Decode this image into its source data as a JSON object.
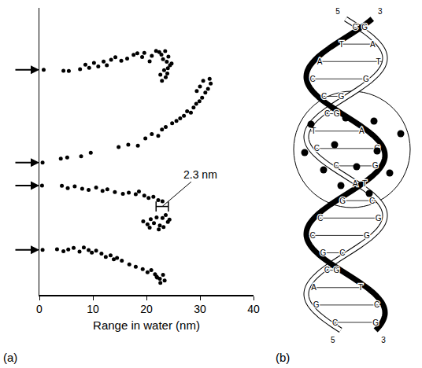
{
  "chart_data": {
    "type": "scatter",
    "panel_label": "(a)",
    "x_label": "Range in water (nm)",
    "xlim": [
      0,
      40
    ],
    "xticks": [
      0,
      10,
      20,
      30,
      40
    ],
    "ylim": [
      0,
      100
    ],
    "yticks": [],
    "tick_labels": "x",
    "grid": false,
    "marker": "circle",
    "series": [
      {
        "color": "#000000",
        "x": [
          0.8,
          4.5,
          5.5,
          7.6,
          8.6,
          9.3,
          10.2,
          11.0,
          12.0,
          12.6,
          13.4,
          14.2,
          15.3,
          16.4,
          17.6,
          18.3,
          19.2,
          19.6,
          20.6,
          21.0,
          21.8,
          22.4,
          22.8,
          23.1,
          23.5,
          23.8,
          24.1,
          24.4,
          24.0,
          23.3,
          22.6,
          23.9,
          24.7,
          22.9,
          23.6
        ],
        "y": [
          78.4,
          78.1,
          78.0,
          78.6,
          80.2,
          79.1,
          80.8,
          79.6,
          81.3,
          80.0,
          81.9,
          82.8,
          81.6,
          82.3,
          83.6,
          84.2,
          82.9,
          84.3,
          81.4,
          83.3,
          85.0,
          84.6,
          83.7,
          82.1,
          84.9,
          81.2,
          83.0,
          80.0,
          79.0,
          78.3,
          76.7,
          77.1,
          80.6,
          74.6,
          75.8
        ]
      },
      {
        "color": "#000000",
        "x": [
          0.6,
          4.0,
          5.2,
          7.8,
          9.6,
          14.8,
          16.6,
          18.4,
          19.8,
          21.0,
          22.2,
          22.9,
          23.6,
          24.8,
          25.6,
          26.3,
          27.0,
          27.6,
          28.3,
          28.8,
          29.3,
          29.9,
          30.4,
          31.0,
          31.5,
          32.0,
          30.6,
          29.4,
          31.8,
          30.0
        ],
        "y": [
          46.1,
          47.5,
          47.9,
          48.3,
          49.5,
          51.5,
          52.3,
          52.0,
          54.5,
          56.0,
          55.4,
          57.6,
          58.5,
          59.8,
          60.6,
          61.5,
          62.4,
          64.0,
          63.5,
          65.3,
          66.6,
          67.5,
          68.7,
          70.5,
          71.8,
          73.6,
          74.6,
          71.0,
          75.3,
          72.6
        ]
      },
      {
        "color": "#000000",
        "x": [
          0.5,
          4.2,
          5.3,
          6.6,
          8.0,
          9.2,
          10.6,
          11.8,
          12.7,
          14.1,
          15.6,
          16.7,
          18.0,
          18.6,
          19.6,
          20.4,
          21.3,
          22.2,
          23.0,
          19.4,
          20.2,
          20.8,
          21.4,
          21.9,
          22.5,
          23.0,
          23.6,
          24.0,
          23.2,
          22.3,
          20.6,
          24.3
        ],
        "y": [
          38.1,
          38.0,
          37.2,
          37.8,
          37.0,
          36.6,
          37.4,
          36.2,
          36.8,
          35.8,
          35.2,
          35.6,
          35.1,
          36.0,
          34.6,
          33.8,
          34.2,
          33.0,
          32.6,
          25.6,
          24.6,
          26.4,
          25.0,
          27.0,
          24.2,
          26.8,
          27.8,
          25.4,
          23.6,
          22.8,
          23.4,
          26.2
        ]
      },
      {
        "color": "#000000",
        "x": [
          0.6,
          3.3,
          4.5,
          5.4,
          6.4,
          7.5,
          8.3,
          9.2,
          9.8,
          10.6,
          11.6,
          12.4,
          13.3,
          13.9,
          14.5,
          15.4,
          16.8,
          18.0,
          19.3,
          20.2,
          20.9,
          21.6,
          22.0,
          22.5,
          23.1,
          23.4,
          22.6,
          21.9
        ],
        "y": [
          15.7,
          15.9,
          15.2,
          15.8,
          16.4,
          15.1,
          16.5,
          15.6,
          14.7,
          15.4,
          14.4,
          13.2,
          13.8,
          12.4,
          12.9,
          11.9,
          10.6,
          9.8,
          9.0,
          7.9,
          8.6,
          7.2,
          6.0,
          5.6,
          7.0,
          5.0,
          4.2,
          6.4
        ]
      }
    ],
    "bracket": {
      "x": [
        21.8,
        24.1
      ],
      "y": 30.8,
      "label": "2.3 nm",
      "label_x": 30,
      "label_y": 42
    }
  },
  "diagram": {
    "panel_label": "(b)",
    "strand_ends": {
      "top": [
        "5",
        "3"
      ],
      "bottom": [
        "5",
        "3"
      ]
    },
    "base_pairs": [
      "CG",
      "TA",
      "AT",
      "CG",
      "CG",
      "CG",
      "TA",
      "CG",
      "CG",
      "AT",
      "GC",
      "CG",
      "CG",
      "GC",
      "CG",
      "AT",
      "GC",
      "CG"
    ]
  }
}
